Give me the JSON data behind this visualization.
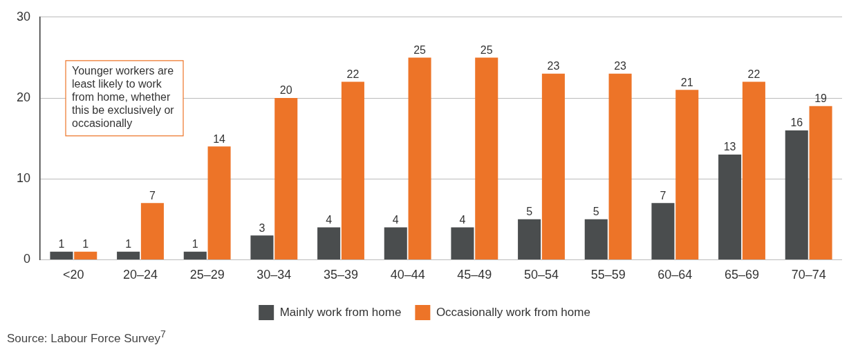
{
  "chart_data": {
    "type": "bar",
    "categories": [
      "<20",
      "20–24",
      "25–29",
      "30–34",
      "35–39",
      "40–44",
      "45–49",
      "50–54",
      "55–59",
      "60–64",
      "65–69",
      "70–74"
    ],
    "series": [
      {
        "name": "Mainly work from home",
        "color": "#4a4d4e",
        "values": [
          1,
          1,
          1,
          3,
          4,
          4,
          4,
          5,
          5,
          7,
          13,
          16
        ]
      },
      {
        "name": "Occasionally work from home",
        "color": "#ed7428",
        "values": [
          1,
          7,
          14,
          20,
          22,
          25,
          25,
          23,
          23,
          21,
          22,
          19
        ]
      }
    ],
    "ylim": [
      0,
      30
    ],
    "yticks": [
      0,
      10,
      20,
      30
    ],
    "grid": "y",
    "legend": "bottom",
    "data_labels": true,
    "annotations": [
      "Younger workers are least likely to work from home, whether this be exclusively or occasionally",
      "Source: Labour Force Survey$^{7}$"
    ]
  }
}
